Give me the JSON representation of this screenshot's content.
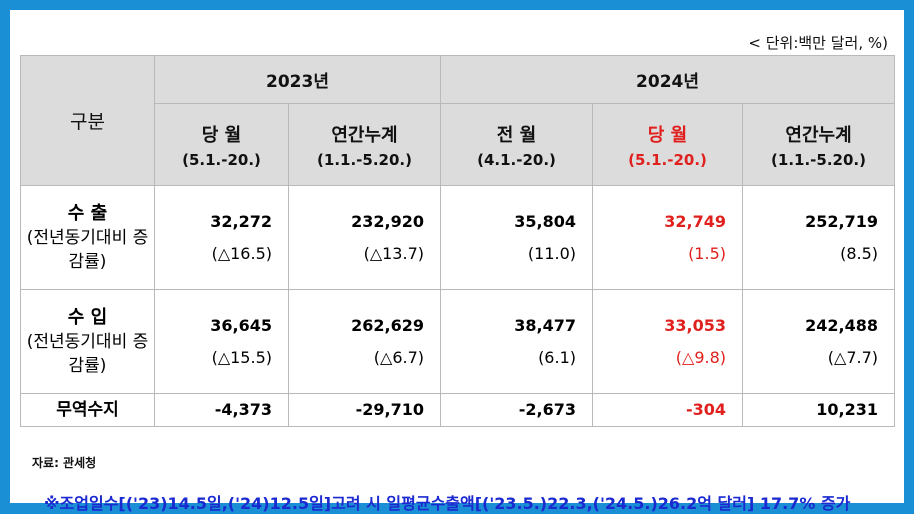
{
  "unit_label": "< 단위:백만 달러, %)",
  "table": {
    "category_header": "구분",
    "year_2023": "2023년",
    "year_2024": "2024년",
    "columns": [
      {
        "title": "당 월",
        "period": "(5.1.-20.)"
      },
      {
        "title": "연간누계",
        "period": "(1.1.-5.20.)"
      },
      {
        "title": "전 월",
        "period": "(4.1.-20.)"
      },
      {
        "title": "당 월",
        "period": "(5.1.-20.)"
      },
      {
        "title": "연간누계",
        "period": "(1.1.-5.20.)"
      }
    ],
    "export_row": {
      "label_main": "수 출",
      "label_sub": "(전년동기대비 증감률)",
      "values": [
        "32,272",
        "232,920",
        "35,804",
        "32,749",
        "252,719"
      ],
      "changes": [
        "(△16.5)",
        "(△13.7)",
        "(11.0)",
        "(1.5)",
        "(8.5)"
      ]
    },
    "import_row": {
      "label_main": "수 입",
      "label_sub": "(전년동기대비 증감률)",
      "values": [
        "36,645",
        "262,629",
        "38,477",
        "33,053",
        "242,488"
      ],
      "changes": [
        "(△15.5)",
        "(△6.7)",
        "(6.1)",
        "(△9.8)",
        "(△7.7)"
      ]
    },
    "balance_row": {
      "label": "무역수지",
      "values": [
        "-4,373",
        "-29,710",
        "-2,673",
        "-304",
        "10,231"
      ]
    }
  },
  "source": "자료: 관세청",
  "footnote": "※조업일수[('23)14.5일,('24)12.5일]고려 시 일평균수출액[('23.5.)22.3,('24.5.)26.2억 달러] 17.7% 증가",
  "colors": {
    "highlight": "#e0201e",
    "note": "#1b2ad0",
    "frame": "#1b8fd6",
    "header_bg": "#dcdcdc"
  }
}
